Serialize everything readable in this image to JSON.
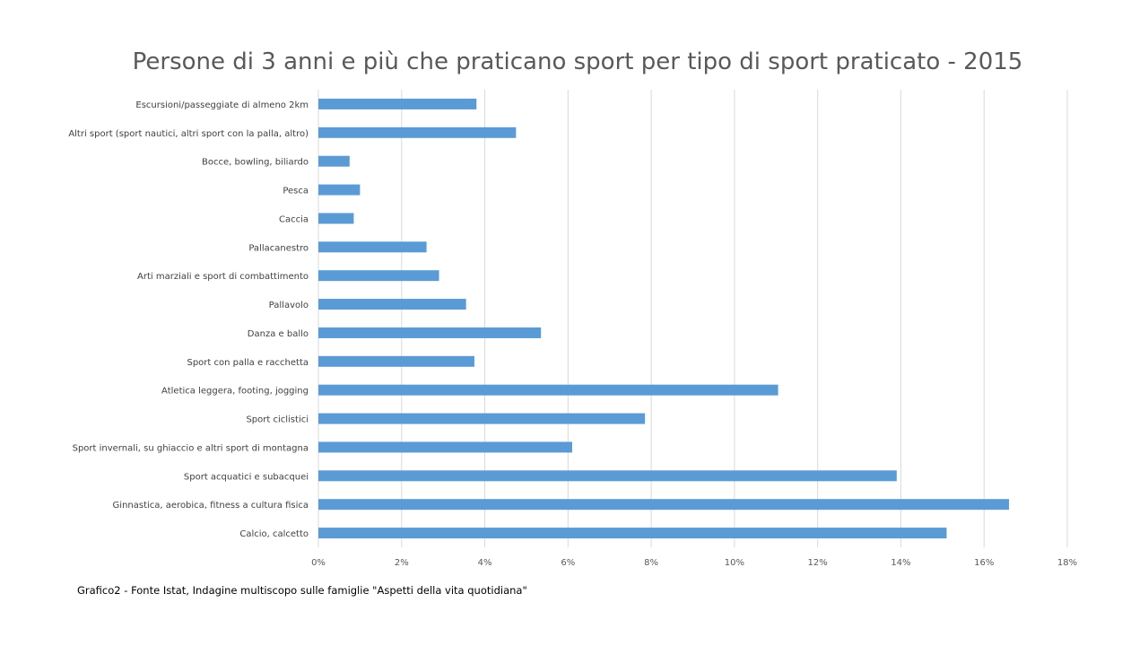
{
  "chart_data": {
    "type": "bar",
    "orientation": "horizontal",
    "title": "Persone di 3 anni e più che praticano sport per tipo di sport praticato - 2015",
    "xlabel": "",
    "ylabel": "",
    "categories": [
      "Escursioni/passeggiate di almeno 2km",
      "Altri sport (sport nautici, altri sport con la palla, altro)",
      "Bocce, bowling, biliardo",
      "Pesca",
      "Caccia",
      "Pallacanestro",
      "Arti marziali e sport di combattimento",
      "Pallavolo",
      "Danza e ballo",
      "Sport con palla e racchetta",
      "Atletica leggera, footing, jogging",
      "Sport ciclistici",
      "Sport invernali, su ghiaccio e altri sport di montagna",
      "Sport acquatici e subacquei",
      "Ginnastica, aerobica, fitness a cultura fisica",
      "Calcio, calcetto"
    ],
    "values": [
      3.8,
      4.75,
      0.75,
      1.0,
      0.85,
      2.6,
      2.9,
      3.55,
      5.35,
      3.75,
      11.05,
      7.85,
      6.1,
      13.9,
      16.6,
      15.1
    ],
    "xlim": [
      0,
      18
    ],
    "xticks": [
      "0%",
      "2%",
      "4%",
      "6%",
      "8%",
      "10%",
      "12%",
      "14%",
      "16%",
      "18%"
    ],
    "grid": true,
    "legend": "none",
    "bar_color": "#5b9bd5",
    "grid_color": "#d9d9d9"
  },
  "footer": {
    "source": "Grafico2 - Fonte Istat, Indagine multiscopo sulle famiglie \"Aspetti della vita quotidiana\""
  }
}
